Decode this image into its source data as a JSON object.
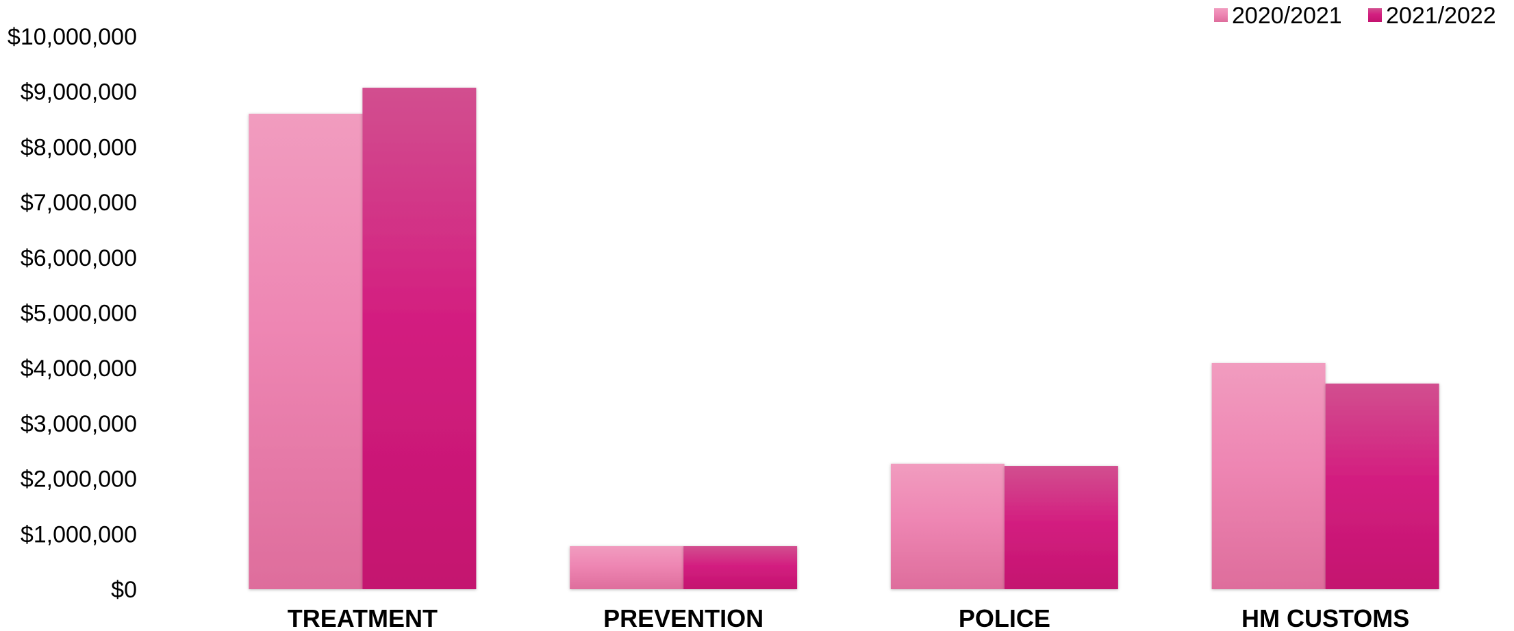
{
  "chart_data": {
    "type": "bar",
    "title": "",
    "xlabel": "",
    "ylabel": "",
    "categories": [
      "TREATMENT",
      "PREVENTION",
      "POLICE",
      "HM CUSTOMS"
    ],
    "series": [
      {
        "name": "2020/2021",
        "values": [
          8600000,
          780000,
          2270000,
          4090000
        ]
      },
      {
        "name": "2021/2022",
        "values": [
          9070000,
          780000,
          2230000,
          3720000
        ]
      }
    ],
    "ylim": [
      0,
      10000000
    ],
    "yticks": [
      "$0",
      "$1,000,000",
      "$2,000,000",
      "$3,000,000",
      "$4,000,000",
      "$5,000,000",
      "$6,000,000",
      "$7,000,000",
      "$8,000,000",
      "$9,000,000",
      "$10,000,000"
    ],
    "grid": false,
    "legend_position": "top-right",
    "colors": {
      "series1_top": "#f19cbf",
      "series1_mid": "#ee86b3",
      "series1_bottom": "#de6d9c",
      "series2_top": "#d24f8f",
      "series2_mid": "#d31f80",
      "series2_bottom": "#c4136f"
    }
  }
}
